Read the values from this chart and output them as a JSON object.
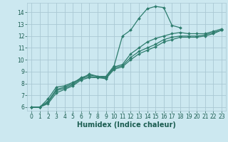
{
  "title": "",
  "xlabel": "Humidex (Indice chaleur)",
  "ylabel": "",
  "background_color": "#cce8f0",
  "grid_color": "#aac8d4",
  "line_color": "#2e7d6e",
  "xlim": [
    -0.5,
    23.5
  ],
  "ylim": [
    5.7,
    14.8
  ],
  "xticks": [
    0,
    1,
    2,
    3,
    4,
    5,
    6,
    7,
    8,
    9,
    10,
    11,
    12,
    13,
    14,
    15,
    16,
    17,
    18,
    19,
    20,
    21,
    22,
    23
  ],
  "yticks": [
    6,
    7,
    8,
    9,
    10,
    11,
    12,
    13,
    14
  ],
  "lines": [
    {
      "x": [
        0,
        1,
        2,
        3,
        4,
        5,
        6,
        7,
        8,
        9,
        10,
        11,
        12,
        13,
        14,
        15,
        16,
        17,
        18
      ],
      "y": [
        6.0,
        6.0,
        6.7,
        7.7,
        7.8,
        8.1,
        8.4,
        8.8,
        8.6,
        8.6,
        9.5,
        12.0,
        12.5,
        13.5,
        14.3,
        14.5,
        14.4,
        12.9,
        12.7
      ],
      "marker": "D",
      "markersize": 2.0,
      "linewidth": 0.9
    },
    {
      "x": [
        0,
        1,
        2,
        3,
        4,
        5,
        6,
        7,
        8,
        9,
        10,
        11,
        12,
        13,
        14,
        15,
        16,
        17,
        18,
        19,
        20,
        21,
        22,
        23
      ],
      "y": [
        6.0,
        6.0,
        6.5,
        7.5,
        7.7,
        8.0,
        8.5,
        8.7,
        8.6,
        8.5,
        9.4,
        9.6,
        10.5,
        11.0,
        11.5,
        11.8,
        12.0,
        12.2,
        12.3,
        12.2,
        12.2,
        12.2,
        12.4,
        12.6
      ],
      "marker": "D",
      "markersize": 2.0,
      "linewidth": 0.9
    },
    {
      "x": [
        0,
        1,
        2,
        3,
        4,
        5,
        6,
        7,
        8,
        9,
        10,
        11,
        12,
        13,
        14,
        15,
        16,
        17,
        18,
        19,
        20,
        21,
        22,
        23
      ],
      "y": [
        6.0,
        6.0,
        6.4,
        7.4,
        7.6,
        7.9,
        8.4,
        8.6,
        8.5,
        8.5,
        9.3,
        9.5,
        10.2,
        10.7,
        11.0,
        11.3,
        11.7,
        11.9,
        12.0,
        12.0,
        12.0,
        12.1,
        12.3,
        12.5
      ],
      "marker": "D",
      "markersize": 2.0,
      "linewidth": 0.9
    },
    {
      "x": [
        0,
        1,
        2,
        3,
        4,
        5,
        6,
        7,
        8,
        9,
        10,
        11,
        12,
        13,
        14,
        15,
        16,
        17,
        18,
        19,
        20,
        21,
        22,
        23
      ],
      "y": [
        6.0,
        6.0,
        6.3,
        7.2,
        7.5,
        7.8,
        8.3,
        8.5,
        8.5,
        8.4,
        9.2,
        9.4,
        10.0,
        10.5,
        10.8,
        11.1,
        11.5,
        11.7,
        11.9,
        11.9,
        11.9,
        12.0,
        12.2,
        12.5
      ],
      "marker": "D",
      "markersize": 2.0,
      "linewidth": 0.9
    }
  ],
  "font_color": "#1a5c50",
  "tick_fontsize": 5.5,
  "label_fontsize": 7.0
}
